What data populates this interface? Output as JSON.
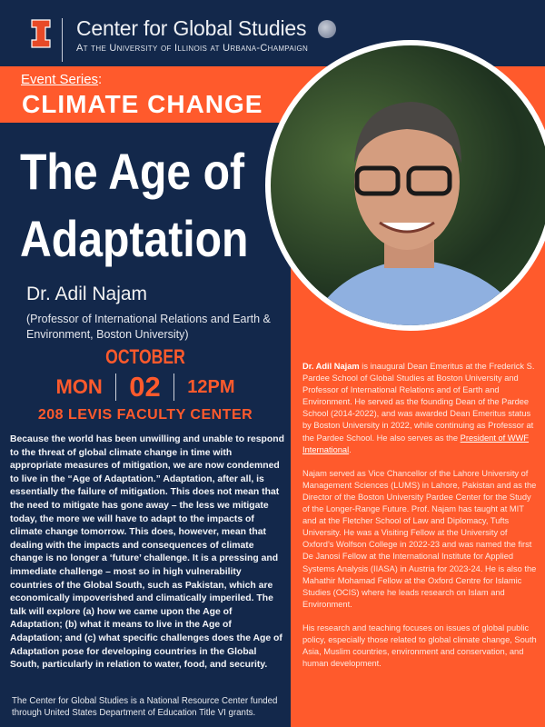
{
  "header": {
    "org_name": "Center for Global Studies",
    "org_subtitle": "At the University of Illinois at Urbana-Champaign",
    "logo_icon": "illinois-block-i",
    "globe_icon": "globe-icon"
  },
  "series": {
    "label": "Event Series",
    "colon": ":",
    "name": "CLIMATE CHANGE"
  },
  "event": {
    "title_line1": "The Age of",
    "title_line2": "Adaptation",
    "speaker": "Dr. Adil Najam",
    "affiliation": "(Professor of International Relations and Earth & Environment, Boston University)",
    "month": "OCTOBER",
    "weekday": "MON",
    "day": "02",
    "time": "12PM",
    "venue": "208 LEVIS FACULTY CENTER"
  },
  "abstract": "Because the world has been unwilling and unable to respond to the threat of global climate change in time with appropriate measures of mitigation, we are now condemned to live in the “Age of Adaptation.” Adaptation, after all, is essentially the failure of mitigation. This does not mean that the need to mitigate has gone away – the less we mitigate today, the more we will have to adapt to the impacts of climate change tomorrow. This does, however, mean that dealing with the impacts and consequences of climate change is no longer a ‘future’ challenge. It is a pressing and immediate challenge – most so in high vulnerability countries of the Global South, such as Pakistan, which are economically impoverished and climatically imperiled. The talk will explore (a) how we came upon the Age of Adaptation; (b) what it means to live in the Age of Adaptation; and (c) what specific challenges does the Age of Adaptation pose for developing countries in the Global South, particularly in relation to water, food, and security.",
  "footer": "The Center for Global Studies is a National Resource Center funded through United States Department of Education Title VI grants.",
  "bio": {
    "p1_name": "Dr. Adil Najam",
    "p1_text": " is inaugural Dean Emeritus at the Frederick S. Pardee School of Global Studies at Boston University and Professor of International Relations and of Earth and Environment. He served as the founding Dean of the Pardee School (2014-2022), and was awarded Dean Emeritus status by Boston University in 2022, while continuing as Professor at the Pardee School. He also serves as the ",
    "p1_link": "President of WWF International",
    "p1_end": ".",
    "p2": "Najam served as Vice Chancellor of the Lahore University of Management Sciences (LUMS) in Lahore, Pakistan and as the Director of the Boston University Pardee Center for the Study of the Longer-Range Future. Prof. Najam has taught at MIT and at the Fletcher School of Law and Diplomacy, Tufts University. He was a Visiting Fellow at the University of Oxford’s Wolfson College in 2022-23 and was named the first De Janosi Fellow at the International Institute for Applied Systems Analysis (IIASA) in Austria for 2023-24. He is also the Mahathir Mohamad Fellow at the Oxford Centre for Islamic Studies (OCIS) where he leads research on Islam and Environment.",
    "p3": "His research and teaching focuses on issues of global public policy, especially those related to global climate change, South Asia, Muslim countries, environment and conservation, and human development."
  },
  "colors": {
    "navy": "#13284b",
    "orange": "#ff5a2c"
  }
}
